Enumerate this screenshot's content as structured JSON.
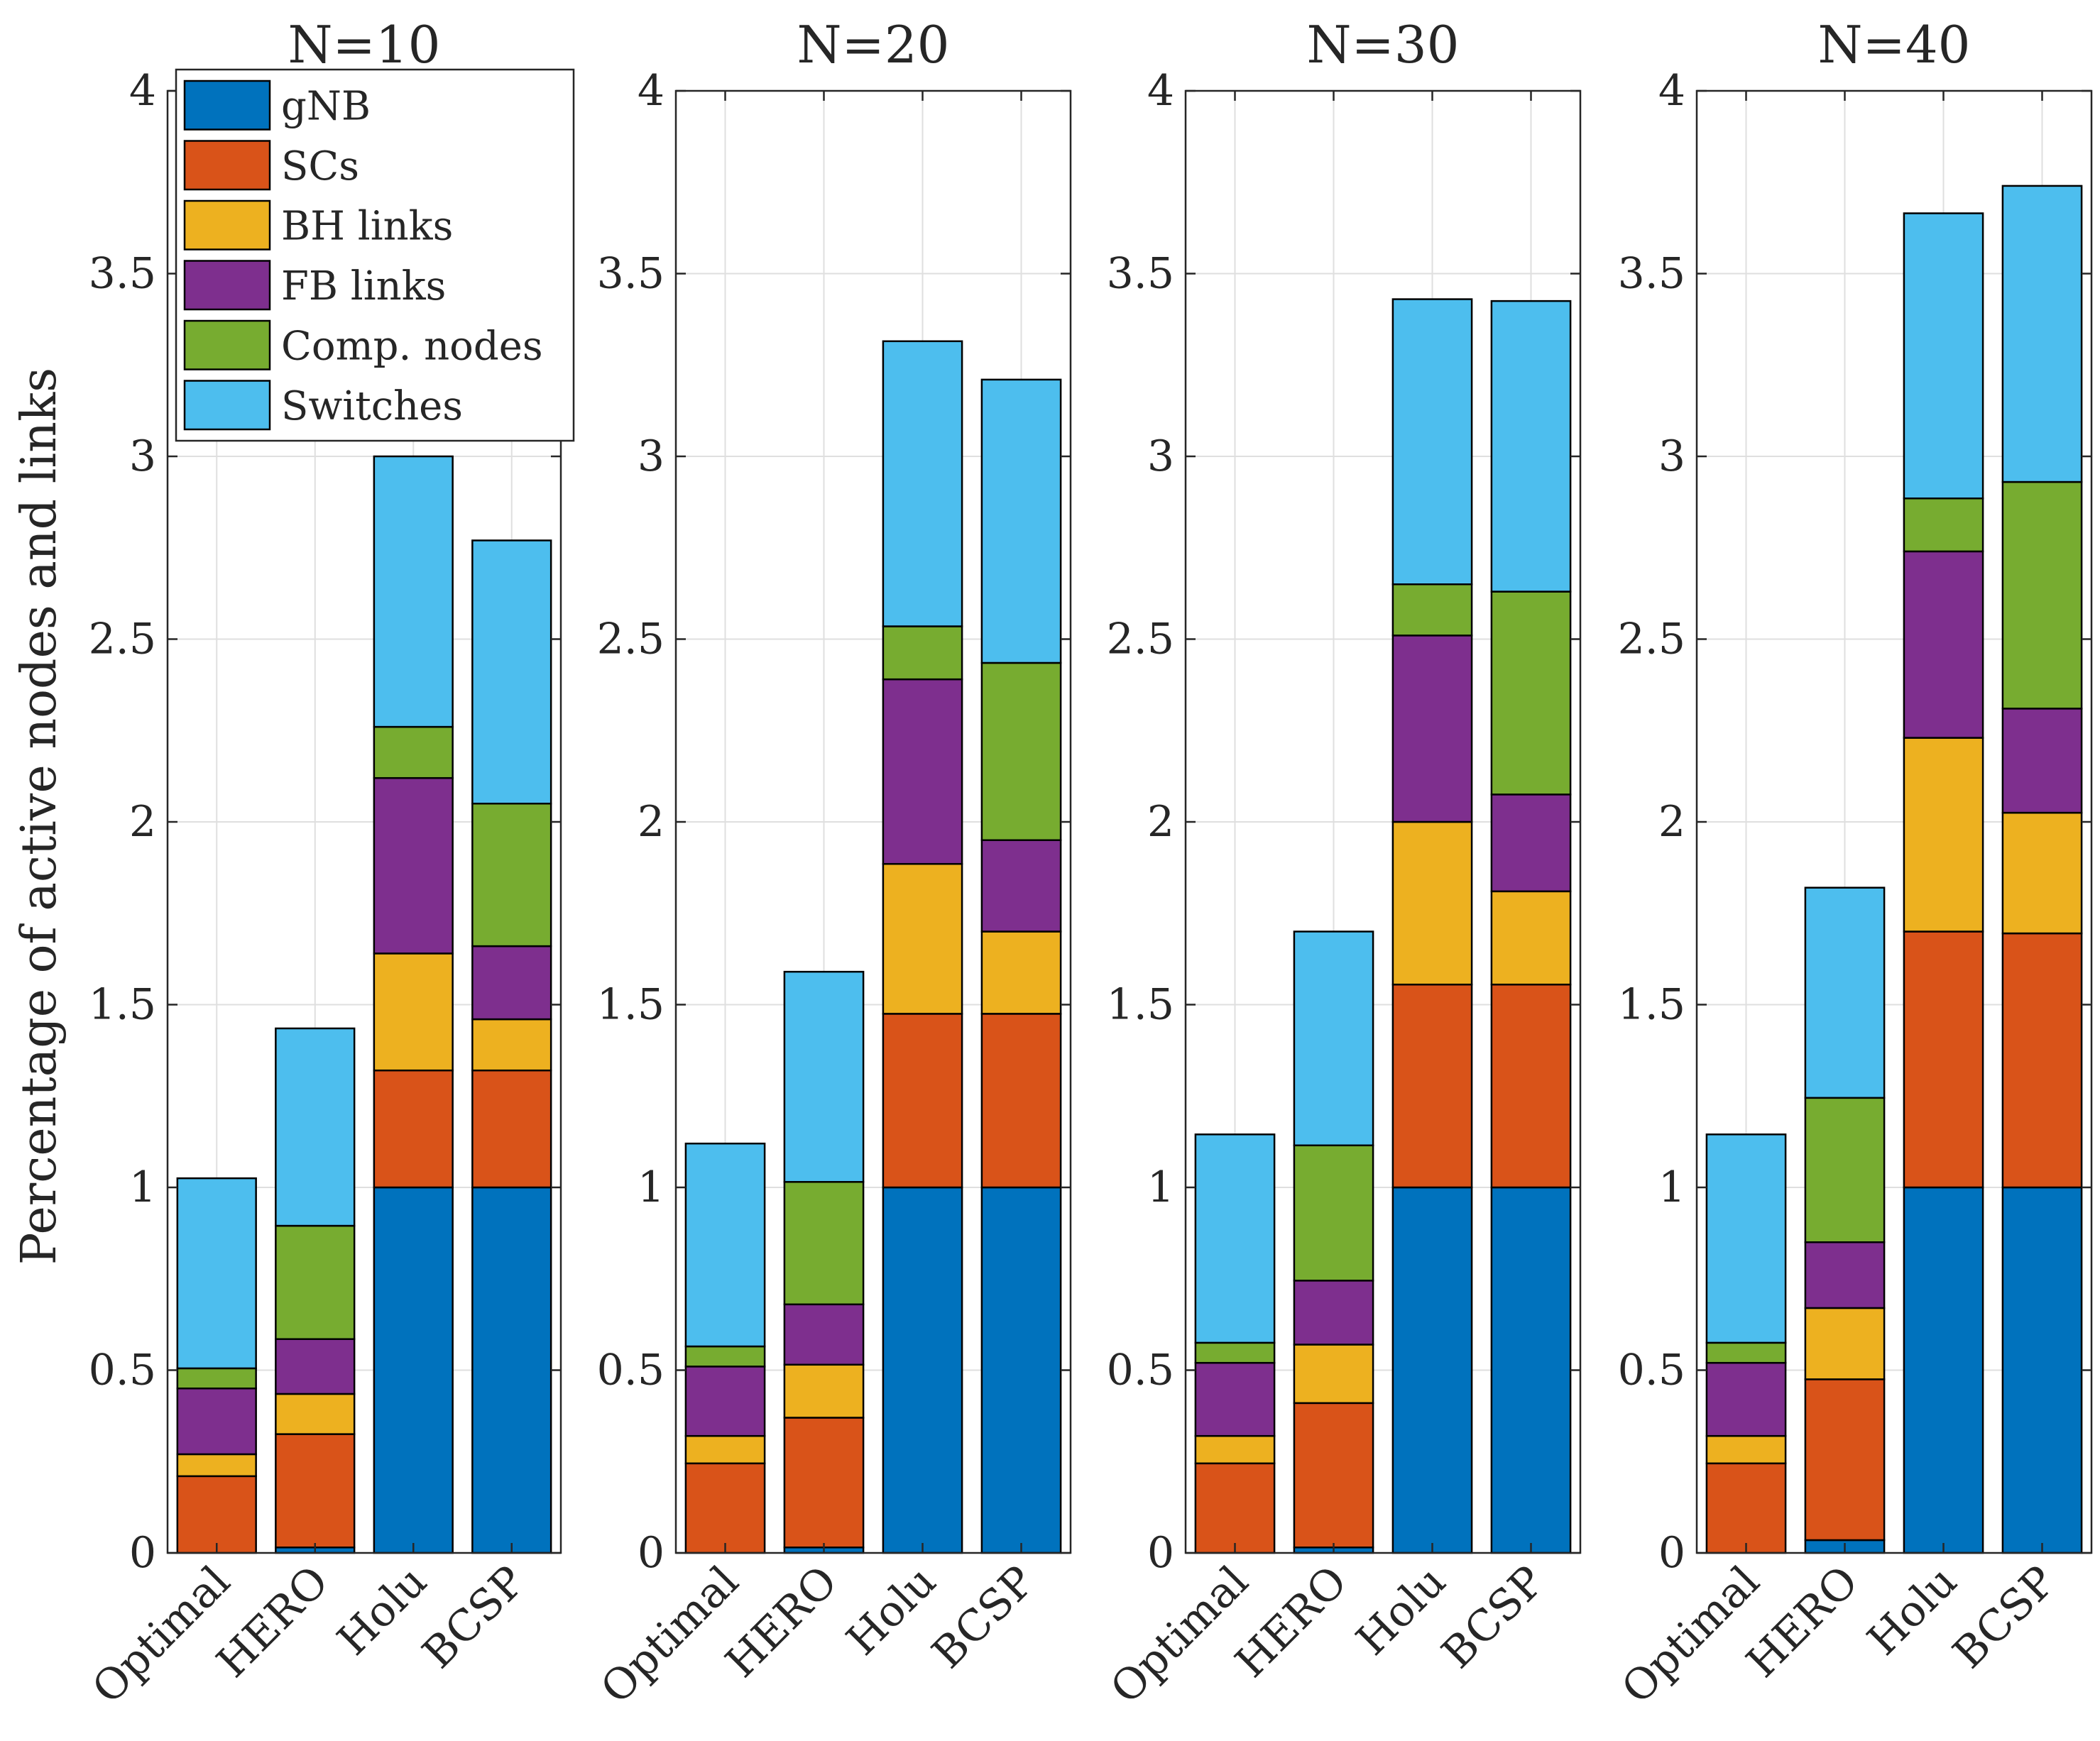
{
  "chart_data": {
    "type": "stacked-bar",
    "ylabel": "Percentage of active nodes and links",
    "ylim": [
      0,
      4
    ],
    "yticks": [
      0,
      0.5,
      1,
      1.5,
      2,
      2.5,
      3,
      3.5,
      4
    ],
    "ytick_labels": [
      "0",
      "0.5",
      "1",
      "1.5",
      "2",
      "2.5",
      "3",
      "3.5",
      "4"
    ],
    "grid": true,
    "categories": [
      "Optimal",
      "HERO",
      "Holu",
      "BCSP"
    ],
    "legend": {
      "location": "top-left of first panel",
      "entries": [
        "gNB",
        "SCs",
        "BH links",
        "FB links",
        "Comp. nodes",
        "Switches"
      ]
    },
    "colors": {
      "gNB": "#0072BD",
      "SCs": "#D95319",
      "BH links": "#EDB120",
      "FB links": "#7E2F8E",
      "Comp. nodes": "#77AC30",
      "Switches": "#4DBEEE"
    },
    "panels": [
      {
        "title": "N=10",
        "series": [
          {
            "name": "gNB",
            "values": [
              0,
              0.015,
              1,
              1
            ]
          },
          {
            "name": "SCs",
            "values": [
              0.21,
              0.31,
              0.32,
              0.32
            ]
          },
          {
            "name": "BH links",
            "values": [
              0.06,
              0.11,
              0.32,
              0.14
            ]
          },
          {
            "name": "FB links",
            "values": [
              0.18,
              0.15,
              0.48,
              0.2
            ]
          },
          {
            "name": "Comp. nodes",
            "values": [
              0.055,
              0.31,
              0.14,
              0.39
            ]
          },
          {
            "name": "Switches",
            "values": [
              0.52,
              0.54,
              0.74,
              0.72
            ]
          }
        ]
      },
      {
        "title": "N=20",
        "series": [
          {
            "name": "gNB",
            "values": [
              0,
              0.015,
              1,
              1
            ]
          },
          {
            "name": "SCs",
            "values": [
              0.245,
              0.355,
              0.475,
              0.475
            ]
          },
          {
            "name": "BH links",
            "values": [
              0.075,
              0.145,
              0.41,
              0.225
            ]
          },
          {
            "name": "FB links",
            "values": [
              0.19,
              0.165,
              0.505,
              0.25
            ]
          },
          {
            "name": "Comp. nodes",
            "values": [
              0.055,
              0.335,
              0.145,
              0.485
            ]
          },
          {
            "name": "Switches",
            "values": [
              0.555,
              0.575,
              0.78,
              0.775
            ]
          }
        ]
      },
      {
        "title": "N=30",
        "series": [
          {
            "name": "gNB",
            "values": [
              0,
              0.015,
              1,
              1
            ]
          },
          {
            "name": "SCs",
            "values": [
              0.245,
              0.395,
              0.555,
              0.555
            ]
          },
          {
            "name": "BH links",
            "values": [
              0.075,
              0.16,
              0.445,
              0.255
            ]
          },
          {
            "name": "FB links",
            "values": [
              0.2,
              0.175,
              0.51,
              0.265
            ]
          },
          {
            "name": "Comp. nodes",
            "values": [
              0.055,
              0.37,
              0.14,
              0.555
            ]
          },
          {
            "name": "Switches",
            "values": [
              0.57,
              0.585,
              0.78,
              0.795
            ]
          }
        ]
      },
      {
        "title": "N=40",
        "series": [
          {
            "name": "gNB",
            "values": [
              0,
              0.035,
              1,
              1
            ]
          },
          {
            "name": "SCs",
            "values": [
              0.245,
              0.44,
              0.7,
              0.695
            ]
          },
          {
            "name": "BH links",
            "values": [
              0.075,
              0.195,
              0.53,
              0.33
            ]
          },
          {
            "name": "FB links",
            "values": [
              0.2,
              0.18,
              0.51,
              0.285
            ]
          },
          {
            "name": "Comp. nodes",
            "values": [
              0.055,
              0.395,
              0.145,
              0.62
            ]
          },
          {
            "name": "Switches",
            "values": [
              0.57,
              0.575,
              0.78,
              0.81
            ]
          }
        ]
      }
    ]
  }
}
